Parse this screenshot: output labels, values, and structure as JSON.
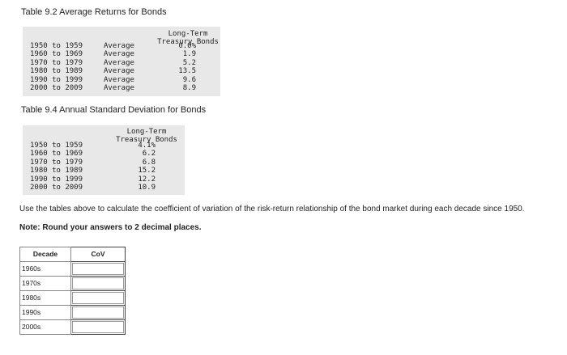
{
  "table1": {
    "title": "Table 9.2 Average Returns for Bonds",
    "header": [
      "Long-Term",
      "Treasury Bonds"
    ],
    "rows": [
      [
        "1950 to 1959",
        "Average",
        "0.0%"
      ],
      [
        "1960 to 1969",
        "Average",
        "1.9"
      ],
      [
        "1970 to 1979",
        "Average",
        "5.2"
      ],
      [
        "1980 to 1989",
        "Average",
        "13.5"
      ],
      [
        "1990 to 1999",
        "Average",
        "9.6"
      ],
      [
        "2000 to 2009",
        "Average",
        "8.9"
      ]
    ]
  },
  "table2": {
    "title": "Table 9.4 Annual Standard Deviation for Bonds",
    "header": [
      "Long-Term",
      "Treasury Bonds"
    ],
    "rows": [
      [
        "1950 to 1959",
        "4.1%"
      ],
      [
        "1960 to 1969",
        "6.2"
      ],
      [
        "1970 to 1979",
        "6.8"
      ],
      [
        "1980 to 1989",
        "15.2"
      ],
      [
        "1990 to 1999",
        "12.2"
      ],
      [
        "2000 to 2009",
        "10.9"
      ]
    ]
  },
  "instruction": "Use the tables above to calculate the coefficient of variation of the risk-return relationship of the bond market during each decade since 1950.",
  "note": "Note: Round your answers to 2 decimal places.",
  "answer_table": {
    "header": [
      "Decade",
      "CoV"
    ],
    "rows": [
      "1960s",
      "1970s",
      "1980s",
      "1990s",
      "2000s"
    ]
  }
}
